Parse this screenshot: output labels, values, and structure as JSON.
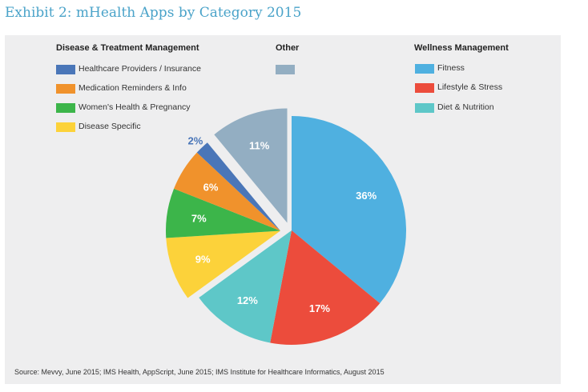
{
  "exhibit_title": "Exhibit 2: mHealth Apps by Category 2015",
  "legend": {
    "disease": {
      "title": "Disease & Treatment Management",
      "items": [
        {
          "label": "Healthcare Providers / Insurance",
          "color": "#4a76b8"
        },
        {
          "label": "Medication Reminders & Info",
          "color": "#f0922c"
        },
        {
          "label": "Women's Health & Pregnancy",
          "color": "#3cb54a"
        },
        {
          "label": "Disease Specific",
          "color": "#fcd23a"
        }
      ]
    },
    "other": {
      "title": "Other",
      "items": [
        {
          "label": "",
          "color": "#93aec2"
        }
      ]
    },
    "wellness": {
      "title": "Wellness Management",
      "items": [
        {
          "label": "Fitness",
          "color": "#4fb0e0"
        },
        {
          "label": "Lifestyle & Stress",
          "color": "#ec4c3c"
        },
        {
          "label": "Diet & Nutrition",
          "color": "#5ec7c8"
        }
      ]
    }
  },
  "chart_data": {
    "type": "pie",
    "title": "mHealth Apps by Category 2015",
    "categories": [
      "Fitness",
      "Lifestyle & Stress",
      "Diet & Nutrition",
      "Disease Specific",
      "Women's Health & Pregnancy",
      "Medication Reminders & Info",
      "Healthcare Providers / Insurance",
      "Other"
    ],
    "groups": [
      "Wellness Management",
      "Wellness Management",
      "Wellness Management",
      "Disease & Treatment Management",
      "Disease & Treatment Management",
      "Disease & Treatment Management",
      "Disease & Treatment Management",
      "Other"
    ],
    "values": [
      36,
      17,
      12,
      9,
      7,
      6,
      2,
      11
    ],
    "labels": [
      "36%",
      "17%",
      "12%",
      "9%",
      "7%",
      "6%",
      "2%",
      "11%"
    ],
    "colors": [
      "#4fb0e0",
      "#ec4c3c",
      "#5ec7c8",
      "#fcd23a",
      "#3cb54a",
      "#f0922c",
      "#4a76b8",
      "#93aec2"
    ],
    "label_colors": [
      "#ffffff",
      "#ffffff",
      "#ffffff",
      "#ffffff",
      "#ffffff",
      "#ffffff",
      "#4a76b8",
      "#ffffff"
    ]
  },
  "source": "Source: Mevvy, June 2015; IMS Health, AppScript, June 2015; IMS Institute for Healthcare Informatics, August 2015"
}
